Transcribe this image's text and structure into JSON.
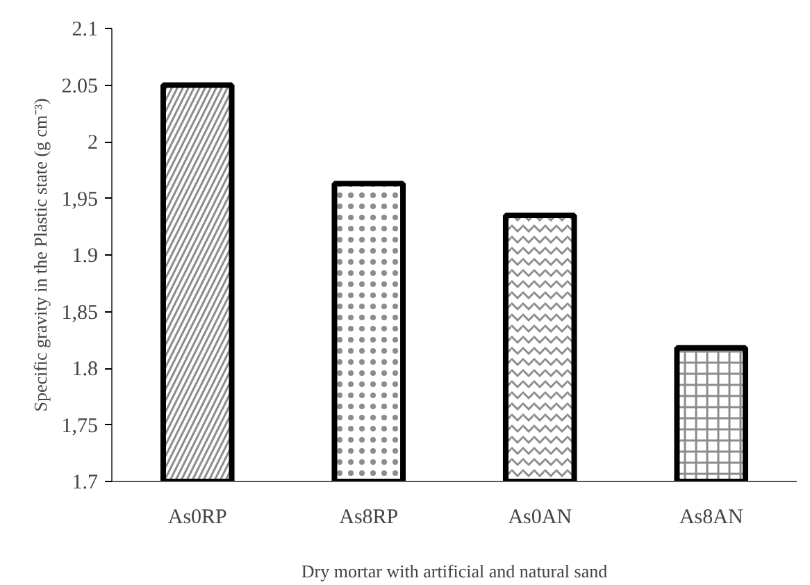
{
  "chart_data": {
    "type": "bar",
    "xlabel": "Dry mortar with artificial and natural sand",
    "ylabel": "Specific gravity in the Plastic state (g cm⁻³)",
    "categories": [
      "As0RP",
      "As8RP",
      "As0AN",
      "As8AN"
    ],
    "values": [
      2.05,
      1.963,
      1.935,
      1.818
    ],
    "color": "#000000",
    "ylim": [
      1.7,
      2.1
    ],
    "yticks": [
      {
        "value": 1.7,
        "label": "1.7"
      },
      {
        "value": 1.75,
        "label": "1,75"
      },
      {
        "value": 1.8,
        "label": "1.8"
      },
      {
        "value": 1.85,
        "label": "1,85"
      },
      {
        "value": 1.9,
        "label": "1.9"
      },
      {
        "value": 1.95,
        "label": "1,95"
      },
      {
        "value": 2,
        "label": "2"
      },
      {
        "value": 2.05,
        "label": "2.05"
      },
      {
        "value": 2.1,
        "label": "2.1"
      }
    ],
    "grid": false
  }
}
